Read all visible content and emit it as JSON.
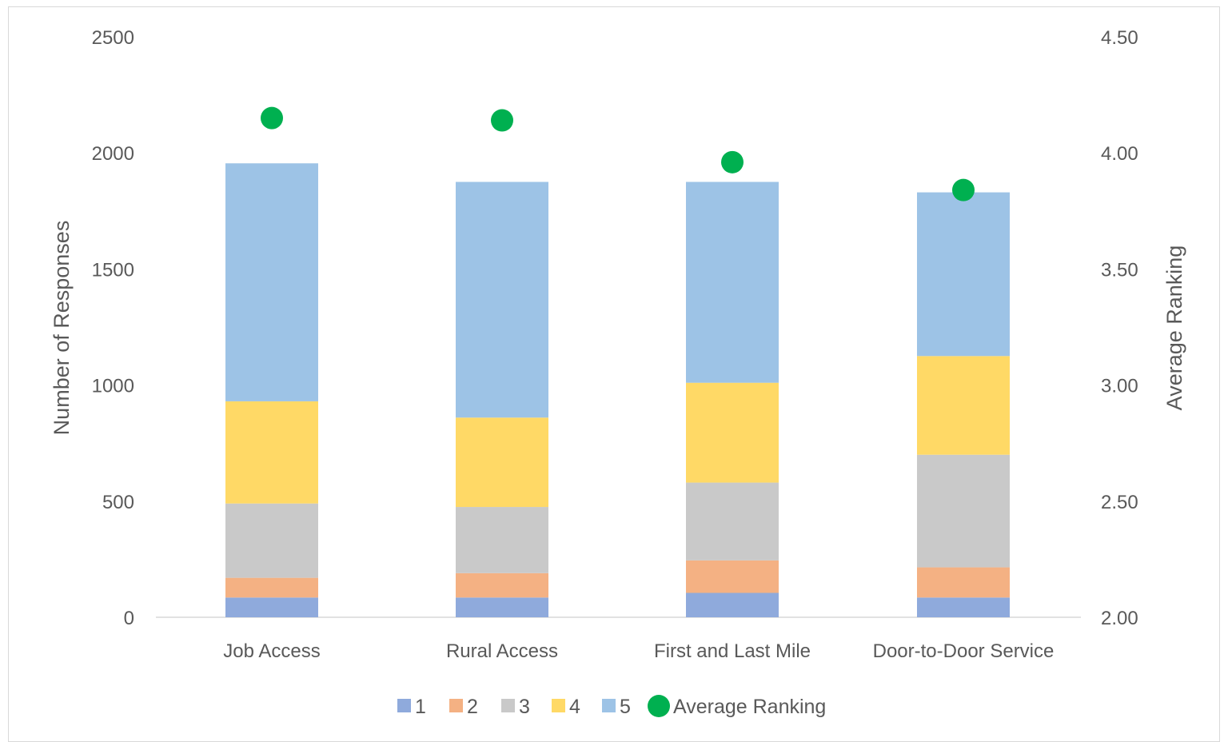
{
  "chart_data": {
    "type": "bar",
    "stacked": true,
    "categories": [
      "Job Access",
      "Rural Access",
      "First and Last Mile",
      "Door-to-Door Service"
    ],
    "series": [
      {
        "name": "1",
        "values": [
          85,
          85,
          105,
          85
        ],
        "color": "#8faadc"
      },
      {
        "name": "2",
        "values": [
          85,
          105,
          140,
          130
        ],
        "color": "#f4b183"
      },
      {
        "name": "3",
        "values": [
          320,
          285,
          335,
          485
        ],
        "color": "#c9c9c9"
      },
      {
        "name": "4",
        "values": [
          440,
          385,
          430,
          425
        ],
        "color": "#ffd966"
      },
      {
        "name": "5",
        "values": [
          1025,
          1015,
          865,
          705
        ],
        "color": "#9dc3e6"
      }
    ],
    "line_series": {
      "name": "Average Ranking",
      "values": [
        4.15,
        4.14,
        3.96,
        3.84
      ],
      "color": "#00b050",
      "axis": "right"
    },
    "ylabel": "Number of Responses",
    "ylabel_right": "Average Ranking",
    "ylim": [
      0,
      2500
    ],
    "ylim_right": [
      2.0,
      4.5
    ],
    "yticks": [
      "0",
      "500",
      "1000",
      "1500",
      "2000",
      "2500"
    ],
    "yticks_right": [
      "2.00",
      "2.50",
      "3.00",
      "3.50",
      "4.00",
      "4.50"
    ],
    "grid": false,
    "legend_placement": "bottom"
  }
}
